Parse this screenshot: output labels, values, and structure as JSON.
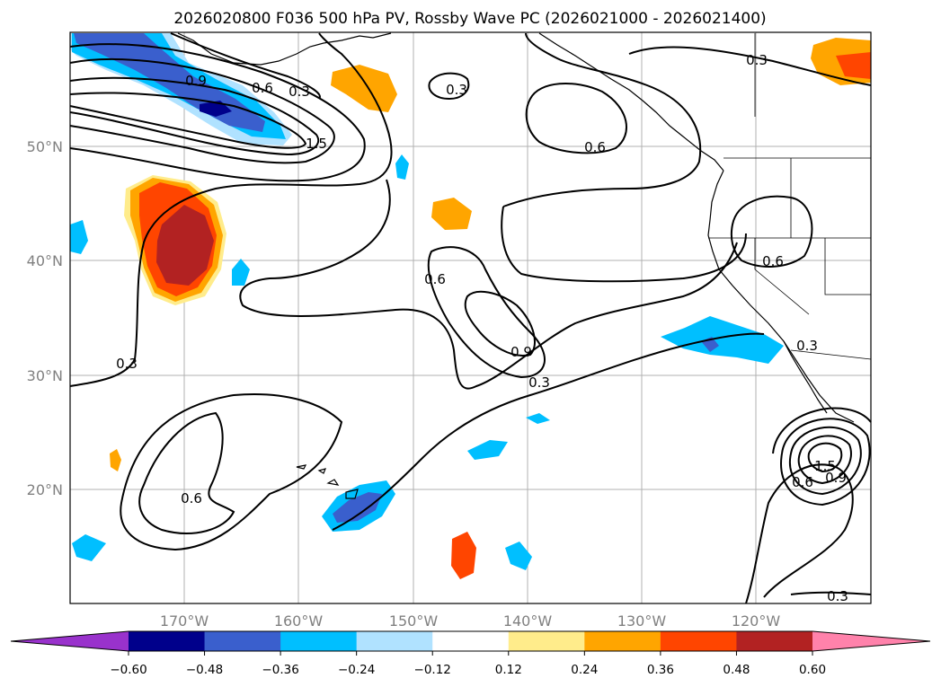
{
  "title": "2026020800 F036 500 hPa PV, Rossby Wave PC (2026021000 - 2026021400)",
  "map": {
    "lat_ticks": [
      "50°N",
      "40°N",
      "30°N",
      "20°N"
    ],
    "lon_ticks": [
      "170°W",
      "160°W",
      "150°W",
      "140°W",
      "130°W",
      "120°W"
    ],
    "contour_labels": [
      "0.9",
      "0.6",
      "0.3",
      "1.5",
      "0.3",
      "0.6",
      "0.6",
      "0.3",
      "0.6",
      "0.9",
      "0.3",
      "0.3",
      "0.6",
      "1.5",
      "0.6",
      "0.9",
      "0.3",
      "0.3"
    ]
  },
  "colorbar": {
    "ticks": [
      "−0.60",
      "−0.48",
      "−0.36",
      "−0.24",
      "−0.12",
      "0.12",
      "0.24",
      "0.36",
      "0.48",
      "0.60"
    ],
    "colors": {
      "below": "#9932cc",
      "bins": [
        "#00008b",
        "#3a5fcd",
        "#00bfff",
        "#b0e2ff",
        "#ffffff",
        "#ffec8b",
        "#ffa500",
        "#ff4500",
        "#b22222"
      ],
      "above": "#ff82ab"
    }
  }
}
